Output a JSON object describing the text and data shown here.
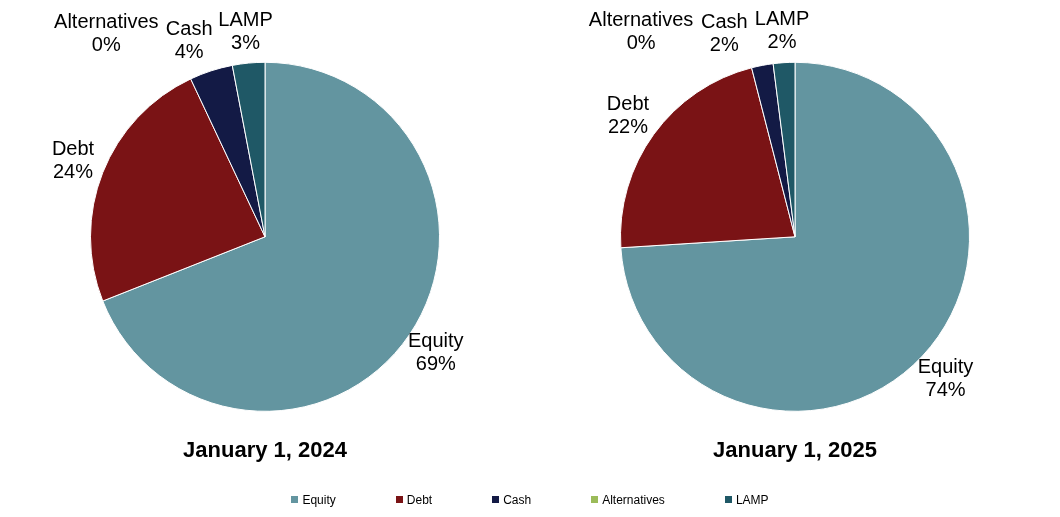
{
  "chart_data": [
    {
      "type": "pie",
      "title": "January 1, 2024",
      "categories": [
        "Equity",
        "Debt",
        "Cash",
        "Alternatives",
        "LAMP"
      ],
      "values": [
        69,
        24,
        4,
        0,
        3
      ],
      "colors": [
        "#6395a0",
        "#7a1315",
        "#131a45",
        "#9bbb59",
        "#1f5866"
      ],
      "value_labels": [
        "69%",
        "24%",
        "4%",
        "0%",
        "3%"
      ],
      "legend": "bottom"
    },
    {
      "type": "pie",
      "title": "January 1, 2025",
      "categories": [
        "Equity",
        "Debt",
        "Cash",
        "Alternatives",
        "LAMP"
      ],
      "values": [
        74,
        22,
        2,
        0,
        2
      ],
      "colors": [
        "#6395a0",
        "#7a1315",
        "#131a45",
        "#9bbb59",
        "#1f5866"
      ],
      "value_labels": [
        "74%",
        "22%",
        "2%",
        "0%",
        "2%"
      ]
    }
  ]
}
